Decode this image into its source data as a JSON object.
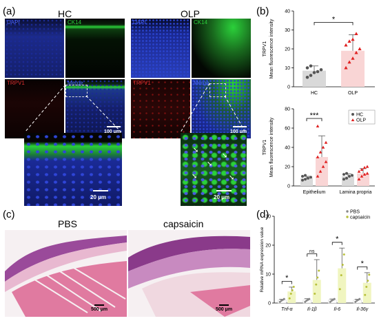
{
  "panel_a": {
    "label": "(a)",
    "group_hc": "HC",
    "group_olp": "OLP",
    "tile_labels": {
      "dapi": "DAPI",
      "ck14": "CK14",
      "trpv1": "TRPV1",
      "merge": "Merge"
    },
    "scalebar_100": "100 μm",
    "scalebar_20": "20 μm",
    "colors": {
      "dapi": "#2a3fb8",
      "ck14": "#2bd03a",
      "trpv1": "#c0262a",
      "dark": "#05050c"
    }
  },
  "panel_b": {
    "label": "(b)"
  },
  "panel_c": {
    "label": "(c)",
    "pbs_title": "PBS",
    "capsaicin_title": "capsaicin",
    "scalebar": "500 μm"
  },
  "panel_d": {
    "label": "(d)"
  },
  "chart_data": [
    {
      "type": "bar",
      "categories": [
        "HC",
        "OLP"
      ],
      "values": [
        8.5,
        19
      ],
      "errors": [
        2.5,
        8.5
      ],
      "points": [
        [
          5,
          6,
          7.5,
          8,
          9,
          10,
          11
        ],
        [
          10,
          13,
          15,
          18,
          20,
          22,
          24,
          25,
          28
        ]
      ],
      "ylabel_top": "TRPV1",
      "ylabel": "Mean fluorescence intensity",
      "ylim": [
        0,
        40
      ],
      "yticks": [
        "0",
        "10",
        "20",
        "30",
        "40"
      ],
      "significance": "*",
      "colors": [
        "#d9d9d9",
        "#f9d5d5"
      ]
    },
    {
      "type": "bar",
      "categories": [
        "Epithelium",
        "Lamina propria"
      ],
      "series": [
        {
          "name": "HC",
          "values": [
            8,
            10
          ],
          "errors": [
            2,
            2.5
          ],
          "color": "#d9d9d9"
        },
        {
          "name": "OLP",
          "values": [
            30,
            13
          ],
          "errors": [
            22,
            5
          ],
          "color": "#f9d5d5"
        }
      ],
      "points": {
        "HC": [
          [
            6,
            7,
            8,
            9,
            10,
            11
          ],
          [
            7,
            8,
            10,
            11,
            12,
            13
          ]
        ],
        "OLP": [
          [
            10,
            15,
            20,
            25,
            30,
            35,
            40,
            45,
            62
          ],
          [
            7,
            10,
            12,
            13,
            15,
            17,
            19,
            20
          ]
        ]
      },
      "ylabel_top": "TRPV1",
      "ylabel": "Mean fluorescence intensity",
      "ylim": [
        0,
        80
      ],
      "yticks": [
        "0",
        "20",
        "40",
        "60",
        "80"
      ],
      "significance": "***",
      "legend": "top-right"
    },
    {
      "type": "bar",
      "categories": [
        "Tnf-α",
        "Il-1β",
        "Il-6",
        "Il-36γ"
      ],
      "series": [
        {
          "name": "PBS",
          "values": [
            1,
            1,
            1,
            1
          ],
          "errors": [
            0.3,
            0.5,
            0.4,
            0.3
          ],
          "color": "#ffffff"
        },
        {
          "name": "capsaicin",
          "values": [
            4,
            8,
            12,
            7
          ],
          "errors": [
            1.5,
            7,
            7,
            3.5
          ],
          "color": "#f0f5c0"
        }
      ],
      "ylabel": "Relative mRNA expression value",
      "ylim": [
        0,
        30
      ],
      "yticks": [
        "0",
        "10",
        "20",
        "30"
      ],
      "significance": [
        "*",
        "ns",
        "*",
        "*"
      ],
      "legend": "top-right"
    }
  ]
}
